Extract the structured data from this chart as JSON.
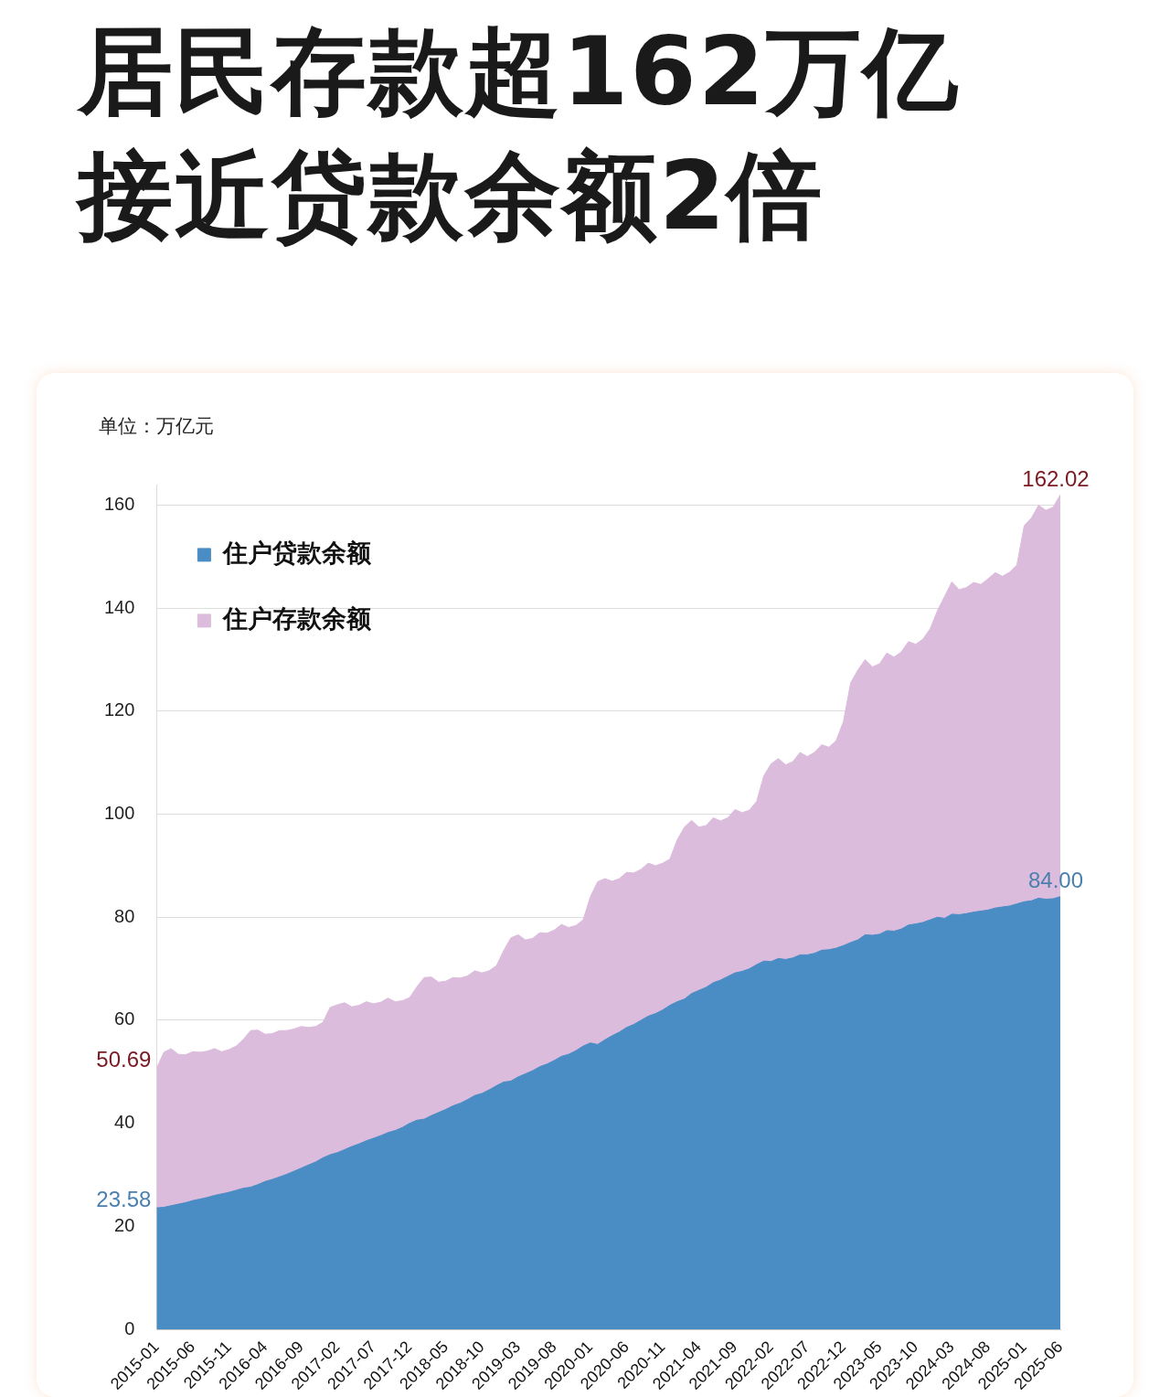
{
  "chart_data": {
    "type": "area",
    "title": "居民存款超162万亿",
    "subtitle": "接近贷款余额2倍",
    "ylabel": "单位：万亿元",
    "categories": [
      "2015-01",
      null,
      null,
      null,
      null,
      "2015-06",
      null,
      null,
      null,
      null,
      "2015-11",
      null,
      null,
      null,
      null,
      "2016-04",
      null,
      null,
      null,
      null,
      "2016-09",
      null,
      null,
      null,
      null,
      "2017-02",
      null,
      null,
      null,
      null,
      "2017-07",
      null,
      null,
      null,
      null,
      "2017-12",
      null,
      null,
      null,
      null,
      "2018-05",
      null,
      null,
      null,
      null,
      "2018-10",
      null,
      null,
      null,
      null,
      "2019-03",
      null,
      null,
      null,
      null,
      "2019-08",
      null,
      null,
      null,
      null,
      "2020-01",
      null,
      null,
      null,
      null,
      "2020-06",
      null,
      null,
      null,
      null,
      "2020-11",
      null,
      null,
      null,
      null,
      "2021-04",
      null,
      null,
      null,
      null,
      "2021-09",
      null,
      null,
      null,
      null,
      "2022-02",
      null,
      null,
      null,
      null,
      "2022-07",
      null,
      null,
      null,
      null,
      "2022-12",
      null,
      null,
      null,
      null,
      "2023-05",
      null,
      null,
      null,
      null,
      "2023-10",
      null,
      null,
      null,
      null,
      "2024-03",
      null,
      null,
      null,
      null,
      "2024-08",
      null,
      null,
      null,
      null,
      "2025-01",
      null,
      null,
      null,
      null,
      "2025-06"
    ],
    "series": [
      {
        "name": "住户贷款余额",
        "color": "#4a8cc4",
        "values": [
          23.58,
          23.7,
          24.0,
          24.3,
          24.6,
          25.0,
          25.3,
          25.6,
          26.0,
          26.3,
          26.6,
          27.0,
          27.4,
          27.6,
          28.1,
          28.7,
          29.1,
          29.6,
          30.1,
          30.7,
          31.3,
          31.9,
          32.5,
          33.3,
          33.9,
          34.3,
          34.9,
          35.5,
          36.0,
          36.6,
          37.1,
          37.6,
          38.2,
          38.6,
          39.2,
          40.0,
          40.6,
          40.8,
          41.5,
          42.1,
          42.7,
          43.4,
          43.9,
          44.6,
          45.4,
          45.8,
          46.5,
          47.3,
          48.0,
          48.2,
          49.0,
          49.6,
          50.2,
          51.0,
          51.5,
          52.2,
          53.0,
          53.4,
          54.1,
          55.0,
          55.6,
          55.3,
          56.2,
          57.0,
          57.7,
          58.6,
          59.2,
          60.0,
          60.8,
          61.3,
          62.0,
          62.9,
          63.6,
          64.1,
          65.2,
          65.8,
          66.4,
          67.3,
          67.8,
          68.5,
          69.2,
          69.5,
          70.0,
          70.8,
          71.5,
          71.4,
          72.0,
          71.8,
          72.1,
          72.7,
          72.7,
          73.0,
          73.6,
          73.7,
          74.0,
          74.5,
          75.1,
          75.6,
          76.6,
          76.5,
          76.7,
          77.4,
          77.3,
          77.7,
          78.5,
          78.7,
          79.0,
          79.5,
          80.0,
          79.8,
          80.6,
          80.5,
          80.7,
          81.0,
          81.2,
          81.4,
          81.8,
          82.0,
          82.2,
          82.6,
          83.0,
          83.2,
          83.7,
          83.5,
          83.6,
          84.0
        ],
        "value_labels": [
          "23.58",
          null,
          null,
          null,
          null,
          null,
          null,
          null,
          null,
          null,
          null,
          null,
          null,
          null,
          null,
          null,
          null,
          null,
          null,
          null,
          null,
          null,
          null,
          null,
          null,
          null,
          null,
          null,
          null,
          null,
          null,
          null,
          null,
          null,
          null,
          null,
          null,
          null,
          null,
          null,
          null,
          null,
          null,
          null,
          null,
          null,
          null,
          null,
          null,
          null,
          null,
          null,
          null,
          null,
          null,
          null,
          null,
          null,
          null,
          null,
          null,
          null,
          null,
          null,
          null,
          null,
          null,
          null,
          null,
          null,
          null,
          null,
          null,
          null,
          null,
          null,
          null,
          null,
          null,
          null,
          null,
          null,
          null,
          null,
          null,
          null,
          null,
          null,
          null,
          null,
          null,
          null,
          null,
          null,
          null,
          null,
          null,
          null,
          null,
          null,
          null,
          null,
          null,
          null,
          null,
          null,
          null,
          null,
          null,
          null,
          null,
          null,
          null,
          null,
          null,
          null,
          null,
          null,
          null,
          null,
          null,
          null,
          null,
          null,
          null,
          "84.00"
        ]
      },
      {
        "name": "住户存款余额",
        "color": "#dcbcdc",
        "values": [
          50.69,
          53.8,
          54.5,
          53.4,
          53.3,
          53.9,
          53.8,
          54.0,
          54.5,
          53.9,
          54.3,
          55.0,
          56.3,
          58.0,
          58.1,
          57.3,
          57.4,
          58.0,
          58.0,
          58.3,
          58.8,
          58.6,
          58.8,
          59.6,
          62.5,
          63.0,
          63.4,
          62.6,
          62.9,
          63.6,
          63.2,
          63.5,
          64.3,
          63.6,
          63.8,
          64.4,
          66.5,
          68.3,
          68.4,
          67.4,
          67.6,
          68.3,
          68.2,
          68.6,
          69.6,
          69.2,
          69.6,
          70.6,
          73.5,
          76.0,
          76.6,
          75.6,
          75.9,
          77.0,
          76.9,
          77.5,
          78.6,
          78.0,
          78.4,
          79.5,
          84.0,
          86.9,
          87.5,
          87.0,
          87.5,
          88.7,
          88.6,
          89.3,
          90.5,
          90.0,
          90.5,
          91.3,
          95.0,
          97.5,
          98.8,
          97.5,
          97.8,
          99.3,
          98.7,
          99.3,
          100.9,
          100.3,
          100.8,
          102.5,
          107.5,
          109.8,
          110.8,
          109.6,
          110.2,
          112.0,
          111.2,
          112.0,
          113.5,
          113.0,
          114.3,
          118.0,
          125.5,
          128.0,
          130.0,
          128.6,
          129.2,
          131.3,
          130.5,
          131.5,
          133.5,
          133.0,
          134.0,
          136.0,
          139.5,
          142.3,
          145.1,
          143.6,
          144.0,
          145.0,
          144.6,
          145.7,
          146.9,
          146.2,
          147.0,
          148.4,
          156.0,
          157.5,
          160.0,
          159.0,
          159.6,
          162.02
        ],
        "value_labels": [
          "50.69",
          null,
          null,
          null,
          null,
          null,
          null,
          null,
          null,
          null,
          null,
          null,
          null,
          null,
          null,
          null,
          null,
          null,
          null,
          null,
          null,
          null,
          null,
          null,
          null,
          null,
          null,
          null,
          null,
          null,
          null,
          null,
          null,
          null,
          null,
          null,
          null,
          null,
          null,
          null,
          null,
          null,
          null,
          null,
          null,
          null,
          null,
          null,
          null,
          null,
          null,
          null,
          null,
          null,
          null,
          null,
          null,
          null,
          null,
          null,
          null,
          null,
          null,
          null,
          null,
          null,
          null,
          null,
          null,
          null,
          null,
          null,
          null,
          null,
          null,
          null,
          null,
          null,
          null,
          null,
          null,
          null,
          null,
          null,
          null,
          null,
          null,
          null,
          null,
          null,
          null,
          null,
          null,
          null,
          null,
          null,
          null,
          null,
          null,
          null,
          null,
          null,
          null,
          null,
          null,
          null,
          null,
          null,
          null,
          null,
          null,
          null,
          null,
          null,
          null,
          null,
          null,
          null,
          null,
          null,
          null,
          null,
          null,
          null,
          null,
          "162.02"
        ]
      }
    ],
    "ylim": [
      0,
      164
    ],
    "yticks": [
      0,
      20,
      40,
      60,
      80,
      100,
      120,
      140,
      160
    ],
    "grid": "y",
    "legend": "top left"
  }
}
